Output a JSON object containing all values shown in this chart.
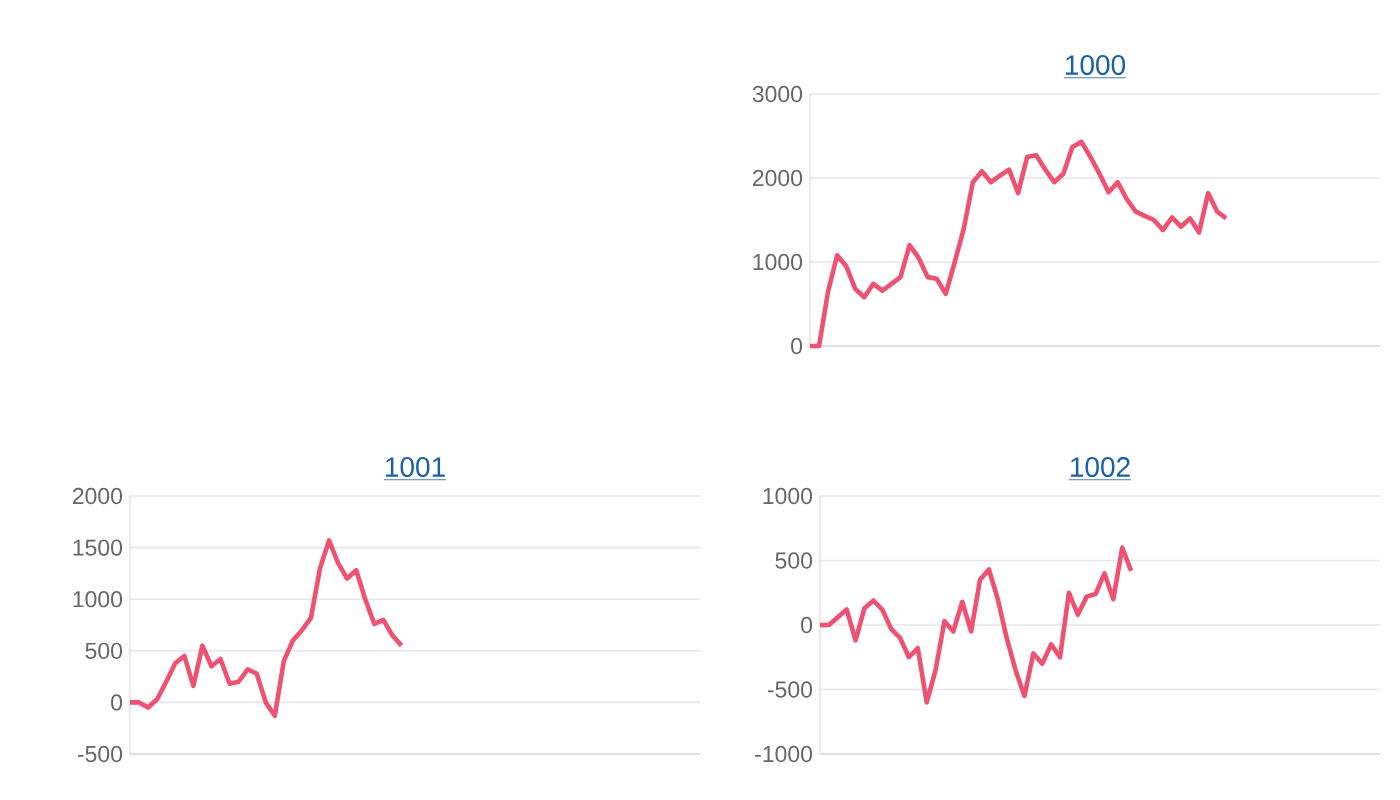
{
  "chart_data": [
    {
      "type": "line",
      "title": "1000",
      "categories": [
        null,
        null,
        null,
        null,
        null,
        null,
        null,
        null,
        null,
        null,
        null,
        null,
        null,
        null,
        null,
        null,
        null,
        null,
        null,
        null,
        null,
        null,
        null,
        null,
        null,
        null,
        null,
        null,
        null,
        null,
        null,
        null,
        null,
        null,
        null,
        null,
        null,
        null,
        null,
        null,
        null,
        null,
        null,
        null,
        null,
        null,
        null,
        null,
        null,
        null,
        null,
        null,
        null,
        null,
        null,
        null,
        null,
        null,
        null,
        null,
        null,
        null,
        null,
        null
      ],
      "series": [
        {
          "color": "#ee5270",
          "values": [
            0,
            0,
            650,
            1080,
            950,
            680,
            580,
            740,
            660,
            740,
            820,
            1200,
            1050,
            820,
            800,
            620,
            1000,
            1400,
            1950,
            2080,
            1950,
            2030,
            2100,
            1820,
            2250,
            2270,
            2100,
            1950,
            2050,
            2370,
            2430,
            2250,
            2050,
            1830,
            1950,
            1750,
            1600,
            1550,
            1500,
            1380,
            1530,
            1420,
            1520,
            1350,
            1820,
            1600,
            1520,
            null,
            null,
            null,
            null,
            null,
            null,
            null,
            null,
            null,
            null,
            null,
            null,
            null,
            null,
            null,
            null,
            null
          ]
        }
      ],
      "ylim": [
        0,
        3000
      ],
      "yticks": [
        0,
        1000,
        2000,
        3000
      ],
      "grid": "y",
      "tick_labels": "y",
      "marker": "none",
      "line_style": "solid"
    },
    {
      "type": "line",
      "title": "1001",
      "categories": [
        null,
        null,
        null,
        null,
        null,
        null,
        null,
        null,
        null,
        null,
        null,
        null,
        null,
        null,
        null,
        null,
        null,
        null,
        null,
        null,
        null,
        null,
        null,
        null,
        null,
        null,
        null,
        null,
        null,
        null,
        null,
        null,
        null,
        null,
        null,
        null,
        null,
        null,
        null,
        null,
        null,
        null,
        null,
        null,
        null,
        null,
        null,
        null,
        null,
        null,
        null,
        null,
        null,
        null,
        null,
        null,
        null,
        null,
        null,
        null,
        null,
        null,
        null,
        null
      ],
      "series": [
        {
          "color": "#ee5270",
          "values": [
            0,
            0,
            -50,
            30,
            200,
            380,
            450,
            160,
            550,
            350,
            420,
            180,
            200,
            320,
            280,
            0,
            -130,
            400,
            600,
            700,
            820,
            1300,
            1570,
            1350,
            1200,
            1280,
            1000,
            760,
            800,
            650,
            550,
            null,
            null,
            null,
            null,
            null,
            null,
            null,
            null,
            null,
            null,
            null,
            null,
            null,
            null,
            null,
            null,
            null,
            null,
            null,
            null,
            null,
            null,
            null,
            null,
            null,
            null,
            null,
            null,
            null,
            null,
            null,
            null,
            null
          ]
        }
      ],
      "ylim": [
        -500,
        2000
      ],
      "yticks": [
        -500,
        0,
        500,
        1000,
        1500,
        2000
      ],
      "grid": "y",
      "tick_labels": "y",
      "marker": "none",
      "line_style": "solid"
    },
    {
      "type": "line",
      "title": "1002",
      "categories": [
        null,
        null,
        null,
        null,
        null,
        null,
        null,
        null,
        null,
        null,
        null,
        null,
        null,
        null,
        null,
        null,
        null,
        null,
        null,
        null,
        null,
        null,
        null,
        null,
        null,
        null,
        null,
        null,
        null,
        null,
        null,
        null,
        null,
        null,
        null,
        null,
        null,
        null,
        null,
        null,
        null,
        null,
        null,
        null,
        null,
        null,
        null,
        null,
        null,
        null,
        null,
        null,
        null,
        null,
        null,
        null,
        null,
        null,
        null,
        null,
        null,
        null,
        null,
        null
      ],
      "series": [
        {
          "color": "#ee5270",
          "values": [
            0,
            0,
            60,
            120,
            -120,
            130,
            190,
            120,
            -30,
            -100,
            -250,
            -180,
            -600,
            -350,
            30,
            -50,
            180,
            -50,
            350,
            430,
            200,
            -100,
            -350,
            -550,
            -220,
            -300,
            -150,
            -250,
            250,
            80,
            220,
            240,
            400,
            200,
            600,
            420,
            null,
            null,
            null,
            null,
            null,
            null,
            null,
            null,
            null,
            null,
            null,
            null,
            null,
            null,
            null,
            null,
            null,
            null,
            null,
            null,
            null,
            null,
            null,
            null,
            null,
            null,
            null,
            null
          ]
        }
      ],
      "ylim": [
        -1000,
        1000
      ],
      "yticks": [
        -1000,
        -500,
        0,
        500,
        1000
      ],
      "grid": "y",
      "tick_labels": "y",
      "marker": "none",
      "line_style": "solid"
    }
  ]
}
